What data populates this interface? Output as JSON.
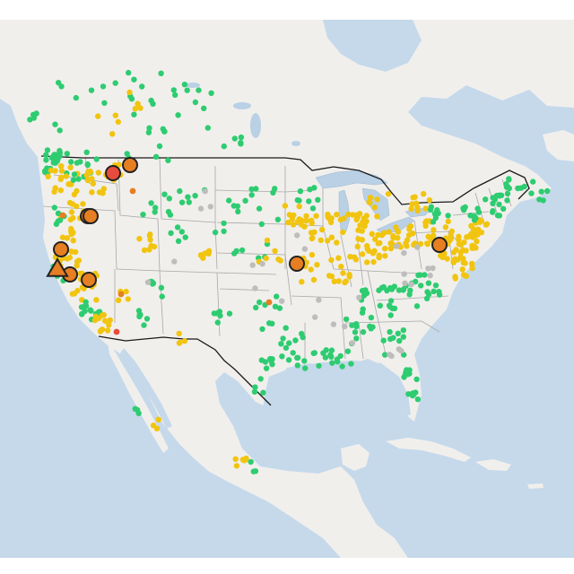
{
  "map": {
    "colors": {
      "ocean": "#c5d9eb",
      "land": "#f1efec",
      "land_shade": "#e7e3de",
      "lakes": "#b9d0e5",
      "state_border": "#a8a8a8",
      "country_border": "#1a1a1a",
      "good": "#2ecc71",
      "moderate": "#f1c40f",
      "usg": "#e67e22",
      "unhealthy": "#e74c3c",
      "no_data": "#bdbdbd",
      "marker_outline": "#222222"
    },
    "marker_legend": [
      {
        "category": "good",
        "color_key": "good"
      },
      {
        "category": "moderate",
        "color_key": "moderate"
      },
      {
        "category": "usg",
        "color_key": "usg"
      },
      {
        "category": "unhealthy",
        "color_key": "unhealthy"
      },
      {
        "category": "no_data",
        "color_key": "no_data"
      }
    ],
    "large_markers": [
      {
        "shape": "circle",
        "category": "usg"
      },
      {
        "shape": "circle",
        "category": "unhealthy"
      },
      {
        "shape": "circle",
        "category": "usg"
      },
      {
        "shape": "circle",
        "category": "usg"
      },
      {
        "shape": "circle",
        "category": "usg"
      },
      {
        "shape": "triangle",
        "category": "usg"
      },
      {
        "shape": "circle",
        "category": "usg"
      },
      {
        "shape": "circle",
        "category": "usg"
      },
      {
        "shape": "circle",
        "category": "usg"
      },
      {
        "shape": "circle",
        "category": "usg"
      }
    ]
  }
}
